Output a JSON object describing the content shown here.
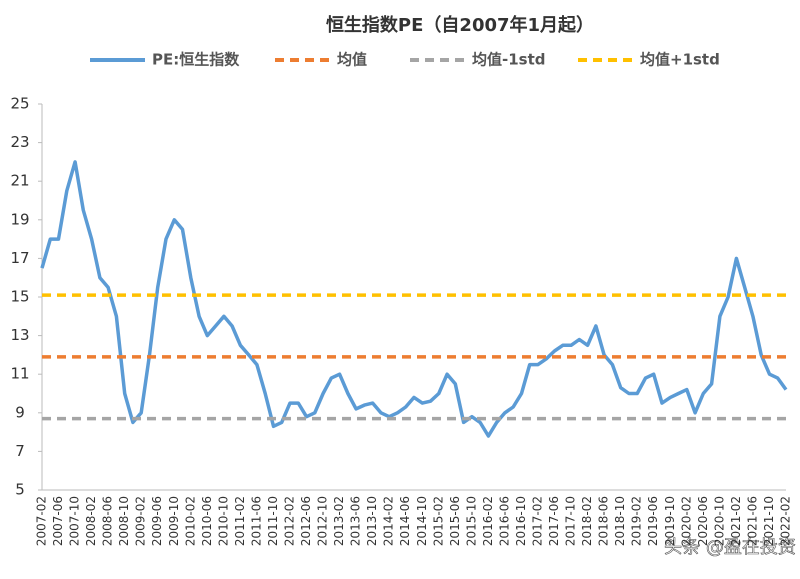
{
  "chart_data": {
    "type": "line",
    "title": "恒生指数PE（自2007年1月起）",
    "categories": [
      "2007-02",
      null,
      "2007-06",
      null,
      "2007-10",
      null,
      "2008-02",
      null,
      "2008-06",
      null,
      "2008-10",
      null,
      "2009-02",
      null,
      "2009-06",
      null,
      "2009-10",
      null,
      "2010-02",
      null,
      "2010-06",
      null,
      "2010-10",
      null,
      "2011-02",
      null,
      "2011-06",
      null,
      "2011-10",
      null,
      "2012-02",
      null,
      "2012-06",
      null,
      "2012-10",
      null,
      "2013-02",
      null,
      "2013-06",
      null,
      "2013-10",
      null,
      "2014-02",
      null,
      "2014-06",
      null,
      "2014-10",
      null,
      "2015-02",
      null,
      "2015-06",
      null,
      "2015-10",
      null,
      "2016-02",
      null,
      "2016-06",
      null,
      "2016-10",
      null,
      "2017-02",
      null,
      "2017-06",
      null,
      "2017-10",
      null,
      "2018-02",
      null,
      "2018-06",
      null,
      "2018-10",
      null,
      "2019-02",
      null,
      "2019-06",
      null,
      "2019-10",
      null,
      "2020-02",
      null,
      "2020-06",
      null,
      "2020-10",
      null,
      "2021-02",
      null,
      "2021-06",
      null,
      "2021-10",
      null,
      "2022-02"
    ],
    "series": [
      {
        "name": "PE:恒生指数",
        "color": "#5b9bd5",
        "values": [
          16.5,
          18.0,
          18.0,
          20.5,
          22.0,
          19.5,
          18.0,
          16.0,
          15.5,
          14.0,
          10.0,
          8.5,
          9.0,
          12.0,
          15.5,
          18.0,
          19.0,
          18.5,
          16.0,
          14.0,
          13.0,
          13.5,
          14.0,
          13.5,
          12.5,
          12.0,
          11.5,
          10.0,
          8.3,
          8.5,
          9.5,
          9.5,
          8.8,
          9.0,
          10.0,
          10.8,
          11.0,
          10.0,
          9.2,
          9.4,
          9.5,
          9.0,
          8.8,
          9.0,
          9.3,
          9.8,
          9.5,
          9.6,
          10.0,
          11.0,
          10.5,
          8.5,
          8.8,
          8.5,
          7.8,
          8.5,
          9.0,
          9.3,
          10.0,
          11.5,
          11.5,
          11.8,
          12.2,
          12.5,
          12.5,
          12.8,
          12.5,
          13.5,
          12.0,
          11.5,
          10.3,
          10.0,
          10.0,
          10.8,
          11.0,
          9.5,
          9.8,
          10.0,
          10.2,
          9.0,
          10.0,
          10.5,
          14.0,
          15.0,
          17.0,
          15.5,
          14.0,
          12.0,
          11.0,
          10.8,
          10.2
        ]
      },
      {
        "name": "均值",
        "color": "#ed7d31",
        "value": 11.9
      },
      {
        "name": "均值-1std",
        "color": "#a5a5a5",
        "value": 8.7
      },
      {
        "name": "均值+1std",
        "color": "#ffc000",
        "value": 15.1
      }
    ],
    "ylim": [
      5,
      25
    ],
    "yticks": [
      5,
      7,
      9,
      11,
      13,
      15,
      17,
      19,
      21,
      23,
      25
    ],
    "watermark": "头条 @盈在投资"
  }
}
